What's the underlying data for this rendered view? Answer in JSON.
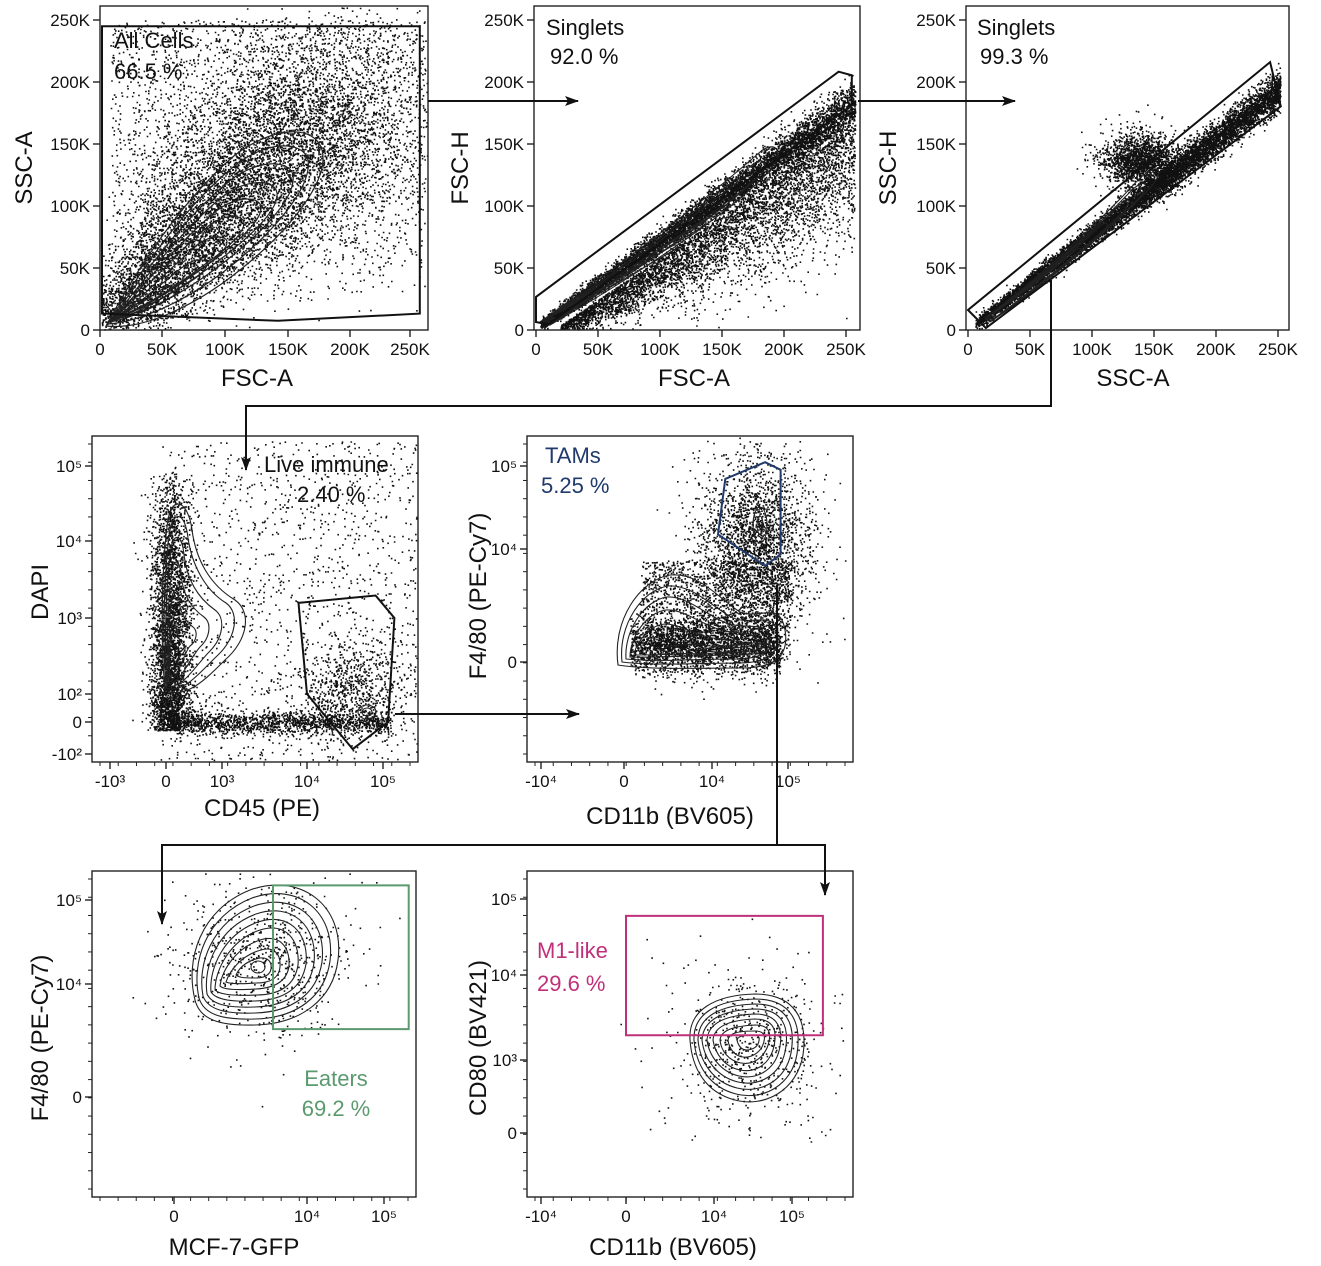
{
  "colors": {
    "ink": "#111111",
    "tams_gate": "#1f3a6b",
    "eaters_gate": "#5b9a6e",
    "m1_gate": "#c0307a"
  },
  "chart_data": [
    {
      "type": "scatter",
      "id": "p1",
      "xlabel": "FSC-A",
      "ylabel": "SSC-A",
      "x_ticks": [
        "0",
        "50K",
        "100K",
        "150K",
        "200K",
        "250K"
      ],
      "y_ticks": [
        "0",
        "50K",
        "100K",
        "150K",
        "200K",
        "250K"
      ],
      "xlim": [
        0,
        262144
      ],
      "ylim": [
        0,
        262144
      ],
      "scale": "linear",
      "gate": {
        "name": "All Cells",
        "percent": "66.5 %",
        "color": "#111111",
        "vertices": [
          [
            0,
            252000
          ],
          [
            262000,
            252000
          ],
          [
            262000,
            12000
          ],
          [
            145000,
            6000
          ],
          [
            0,
            12000
          ]
        ]
      },
      "population": {
        "center": [
          70000,
          55000
        ],
        "spread": [
          55000,
          40000
        ]
      }
    },
    {
      "type": "scatter",
      "id": "p2",
      "xlabel": "FSC-A",
      "ylabel": "FSC-H",
      "x_ticks": [
        "0",
        "50K",
        "100K",
        "150K",
        "200K",
        "250K"
      ],
      "y_ticks": [
        "0",
        "50K",
        "100K",
        "150K",
        "200K",
        "250K"
      ],
      "xlim": [
        0,
        262144
      ],
      "ylim": [
        0,
        262144
      ],
      "scale": "linear",
      "gate": {
        "name": "Singlets",
        "percent": "92.0 %",
        "color": "#111111",
        "vertices": [
          [
            0,
            26000
          ],
          [
            0,
            5000
          ],
          [
            10000,
            3000
          ],
          [
            262000,
            186000
          ],
          [
            262000,
            211000
          ],
          [
            251000,
            214000
          ]
        ]
      },
      "population": {
        "center": [
          100000,
          75000
        ],
        "spread": [
          60000,
          4000
        ]
      }
    },
    {
      "type": "scatter",
      "id": "p3",
      "xlabel": "SSC-A",
      "ylabel": "SSC-H",
      "x_ticks": [
        "0",
        "50K",
        "100K",
        "150K",
        "200K",
        "250K"
      ],
      "y_ticks": [
        "0",
        "50K",
        "100K",
        "150K",
        "200K",
        "250K"
      ],
      "xlim": [
        0,
        262144
      ],
      "ylim": [
        0,
        262144
      ],
      "scale": "linear",
      "gate": {
        "name": "Singlets",
        "percent": "99.3 %",
        "color": "#111111",
        "vertices": [
          [
            0,
            15000
          ],
          [
            15000,
            0
          ],
          [
            262000,
            185000
          ],
          [
            253000,
            222000
          ]
        ]
      },
      "population": {
        "center": [
          100000,
          90000
        ],
        "spread": [
          50000,
          3000
        ]
      }
    },
    {
      "type": "scatter",
      "id": "p4",
      "xlabel": "CD45 (PE)",
      "ylabel": "DAPI",
      "x_ticks": [
        "-10³",
        "0",
        "10³",
        "10⁴",
        "10⁵"
      ],
      "y_ticks": [
        "-10²",
        "0",
        "10²",
        "10³",
        "10⁴",
        "10⁵"
      ],
      "xlim": [
        "-10³",
        "2.6×10⁵"
      ],
      "ylim": [
        "-10²",
        "2.6×10⁵"
      ],
      "scale": "biexponential",
      "gate": {
        "name": "Live immune",
        "percent": "2.40 %",
        "color": "#111111",
        "vertices": [
          [
            8000,
            1600
          ],
          [
            80000,
            2000
          ],
          [
            150000,
            1000
          ],
          [
            120000,
            0
          ],
          [
            40000,
            -80
          ],
          [
            10000,
            100
          ]
        ]
      },
      "population": {
        "center": [
          0,
          2000
        ],
        "spread": [
          800,
          8000
        ]
      }
    },
    {
      "type": "scatter",
      "id": "p5",
      "xlabel": "CD11b (BV605)",
      "ylabel": "F4/80 (PE-Cy7)",
      "x_ticks": [
        "-10⁴",
        "0",
        "10⁴",
        "10⁵"
      ],
      "y_ticks": [
        "0",
        "10⁴",
        "10⁵"
      ],
      "xlim": [
        "-2×10⁴",
        "2.6×10⁵"
      ],
      "ylim": [
        "-3000",
        "2.6×10⁵"
      ],
      "scale": "biexponential",
      "gate": {
        "name": "TAMs",
        "percent": "5.25 %",
        "color": "#1f3a6b",
        "vertices": [
          [
            15000,
            70000
          ],
          [
            50000,
            115000
          ],
          [
            80000,
            90000
          ],
          [
            80000,
            8000
          ],
          [
            50000,
            5000
          ],
          [
            12000,
            15000
          ]
        ]
      },
      "population": {
        "center": [
          20000,
          400
        ],
        "spread": [
          30000,
          2000
        ]
      }
    },
    {
      "type": "scatter",
      "id": "p6",
      "xlabel": "MCF-7-GFP",
      "ylabel": "F4/80 (PE-Cy7)",
      "x_ticks": [
        "0",
        "10⁴",
        "10⁵"
      ],
      "y_ticks": [
        "0",
        "10⁴",
        "10⁵"
      ],
      "xlim": [
        "-3000",
        "2.6×10⁵"
      ],
      "ylim": [
        "-3000",
        "2.6×10⁵"
      ],
      "scale": "biexponential",
      "gate": {
        "name": "Eaters",
        "percent": "69.2 %",
        "color": "#5b9a6e",
        "vertices": [
          [
            3000,
            180000
          ],
          [
            250000,
            180000
          ],
          [
            250000,
            1500
          ],
          [
            3000,
            1500
          ]
        ]
      },
      "population": {
        "center": [
          3000,
          14000
        ],
        "spread": [
          6000,
          12000
        ]
      }
    },
    {
      "type": "scatter",
      "id": "p7",
      "xlabel": "CD11b (BV605)",
      "ylabel": "CD80 (BV421)",
      "x_ticks": [
        "-10⁴",
        "0",
        "10⁴",
        "10⁵"
      ],
      "y_ticks": [
        "0",
        "10³",
        "10⁴",
        "10⁵"
      ],
      "xlim": [
        "-2×10⁴",
        "2.6×10⁵"
      ],
      "ylim": [
        "-600",
        "2.6×10⁵"
      ],
      "scale": "biexponential",
      "gate": {
        "name": "M1-like",
        "percent": "29.6 %",
        "color": "#c0307a",
        "vertices": [
          [
            0,
            60000
          ],
          [
            200000,
            60000
          ],
          [
            200000,
            2000
          ],
          [
            0,
            2000
          ]
        ]
      },
      "population": {
        "center": [
          35000,
          1800
        ],
        "spread": [
          40000,
          2500
        ]
      }
    }
  ]
}
